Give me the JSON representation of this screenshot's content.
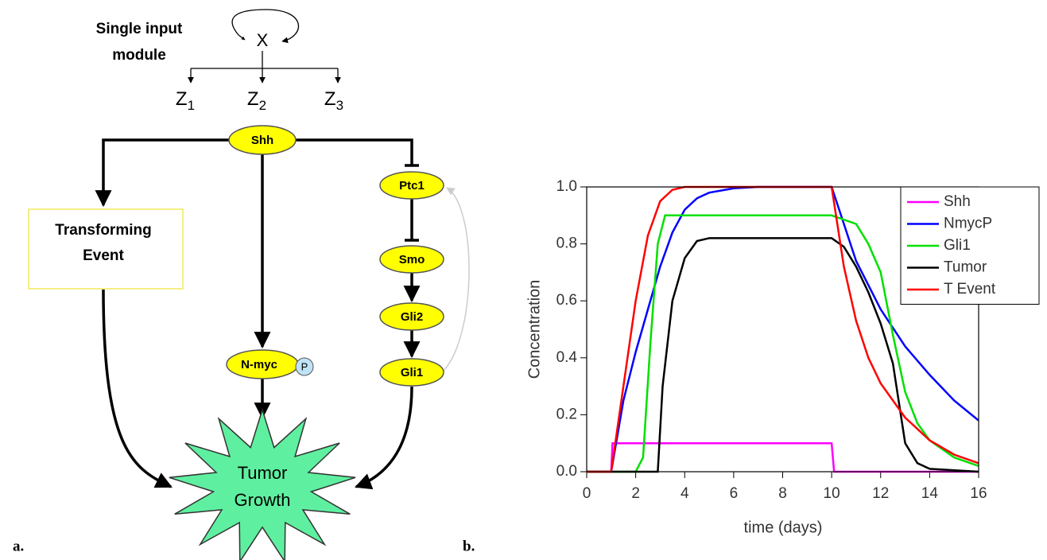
{
  "diagram": {
    "module_label": [
      "Single input",
      "module"
    ],
    "hub": "X",
    "targets": [
      {
        "base": "Z",
        "sub": "1"
      },
      {
        "base": "Z",
        "sub": "2"
      },
      {
        "base": "Z",
        "sub": "3"
      }
    ],
    "nodes": {
      "shh": "Shh",
      "ptc1": "Ptc1",
      "smo": "Smo",
      "gli2": "Gli2",
      "gli1": "Gli1",
      "nmyc": "N-myc",
      "phospho": "P"
    },
    "transforming_event": [
      "Transforming",
      "Event"
    ],
    "tumor_growth": [
      "Tumor",
      "Growth"
    ]
  },
  "panel_labels": [
    "a.",
    "b."
  ],
  "chart_data": {
    "type": "line",
    "xlabel": "time (days)",
    "ylabel": "Concentration",
    "xlim": [
      0,
      16
    ],
    "ylim": [
      0,
      1
    ],
    "xticks": [
      0,
      2,
      4,
      6,
      8,
      10,
      12,
      14,
      16
    ],
    "yticks": [
      {
        "value": 0,
        "label": "0.0"
      },
      0.2,
      0.4,
      0.6,
      0.8,
      {
        "value": 1,
        "label": "1.0"
      }
    ],
    "legend": "upper right",
    "series": [
      {
        "name": "Shh",
        "color": "#ff00ff",
        "x": [
          0,
          1,
          1.05,
          10,
          10.1,
          16
        ],
        "values": [
          0,
          0,
          0.1,
          0.1,
          0,
          0
        ]
      },
      {
        "name": "NmycP",
        "color": "#0000ff",
        "x": [
          0,
          1,
          1.5,
          2,
          2.5,
          3,
          3.5,
          4,
          4.5,
          5,
          6,
          7,
          10,
          10.5,
          11,
          12,
          13,
          14,
          15,
          16
        ],
        "values": [
          0,
          0,
          0.25,
          0.42,
          0.57,
          0.72,
          0.84,
          0.92,
          0.96,
          0.98,
          0.995,
          1,
          1,
          0.87,
          0.74,
          0.57,
          0.44,
          0.34,
          0.25,
          0.18
        ]
      },
      {
        "name": "Gli1",
        "color": "#00e000",
        "x": [
          0,
          2,
          2.3,
          2.6,
          2.9,
          3.2,
          10,
          11,
          11.5,
          12,
          12.5,
          13,
          13.5,
          14,
          15,
          16
        ],
        "values": [
          0,
          0,
          0.05,
          0.45,
          0.8,
          0.9,
          0.9,
          0.87,
          0.8,
          0.7,
          0.48,
          0.28,
          0.17,
          0.11,
          0.05,
          0.02
        ]
      },
      {
        "name": "Tumor",
        "color": "#000000",
        "x": [
          0,
          2.9,
          3.1,
          3.5,
          4,
          4.5,
          5,
          10,
          10.5,
          11,
          11.5,
          12,
          12.5,
          13,
          13.5,
          14,
          16
        ],
        "values": [
          0,
          0,
          0.3,
          0.6,
          0.75,
          0.81,
          0.82,
          0.82,
          0.79,
          0.72,
          0.63,
          0.52,
          0.38,
          0.1,
          0.03,
          0.01,
          0
        ]
      },
      {
        "name": "T Event",
        "color": "#ff0000",
        "x": [
          0,
          1,
          1.5,
          2,
          2.5,
          3,
          3.5,
          4,
          10,
          10.5,
          11,
          11.5,
          12,
          13,
          14,
          15,
          16
        ],
        "values": [
          0,
          0,
          0.3,
          0.6,
          0.83,
          0.95,
          0.99,
          1,
          1,
          0.72,
          0.53,
          0.4,
          0.31,
          0.19,
          0.11,
          0.06,
          0.03
        ]
      }
    ]
  }
}
